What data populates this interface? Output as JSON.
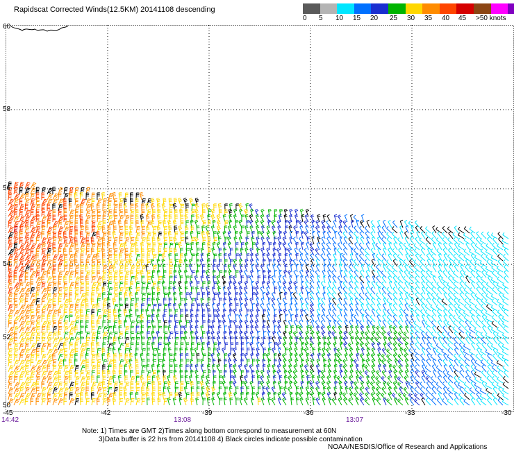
{
  "header": {
    "title": "Rapidscat Corrected Winds(12.5KM) 20141108 descending"
  },
  "legend": {
    "colors": [
      "#5a5a5a",
      "#b4b4b4",
      "#00e6ff",
      "#0070ff",
      "#1a2fd0",
      "#00b400",
      "#ffd700",
      "#ff8c00",
      "#ff4500",
      "#d50000",
      "#8b4513",
      "#ff00ff",
      "#8000c0"
    ],
    "labels": [
      "0",
      "5",
      "10",
      "15",
      "20",
      "25",
      "30",
      "35",
      "40",
      "45",
      ">50 knots"
    ]
  },
  "map": {
    "lat_labels": [
      "60",
      "58",
      "56",
      "54",
      "52",
      "50"
    ],
    "lon_labels": [
      "-45",
      "-42",
      "-39",
      "-36",
      "-33",
      "-30"
    ],
    "time_labels": [
      "14:42",
      "13:08",
      "13:07"
    ],
    "lat_range": [
      50,
      60
    ],
    "lon_range": [
      -45,
      -30
    ],
    "grid": "dotted"
  },
  "footer": {
    "note_line1": "Note: 1) Times are GMT 2)Times along bottom correspond to measurement at 60N",
    "note_line2": "3)Data buffer is 22 hrs from 20141108 4) Black circles indicate possible contamination",
    "credit": "NOAA/NESDIS/Office of Research and Applications"
  }
}
